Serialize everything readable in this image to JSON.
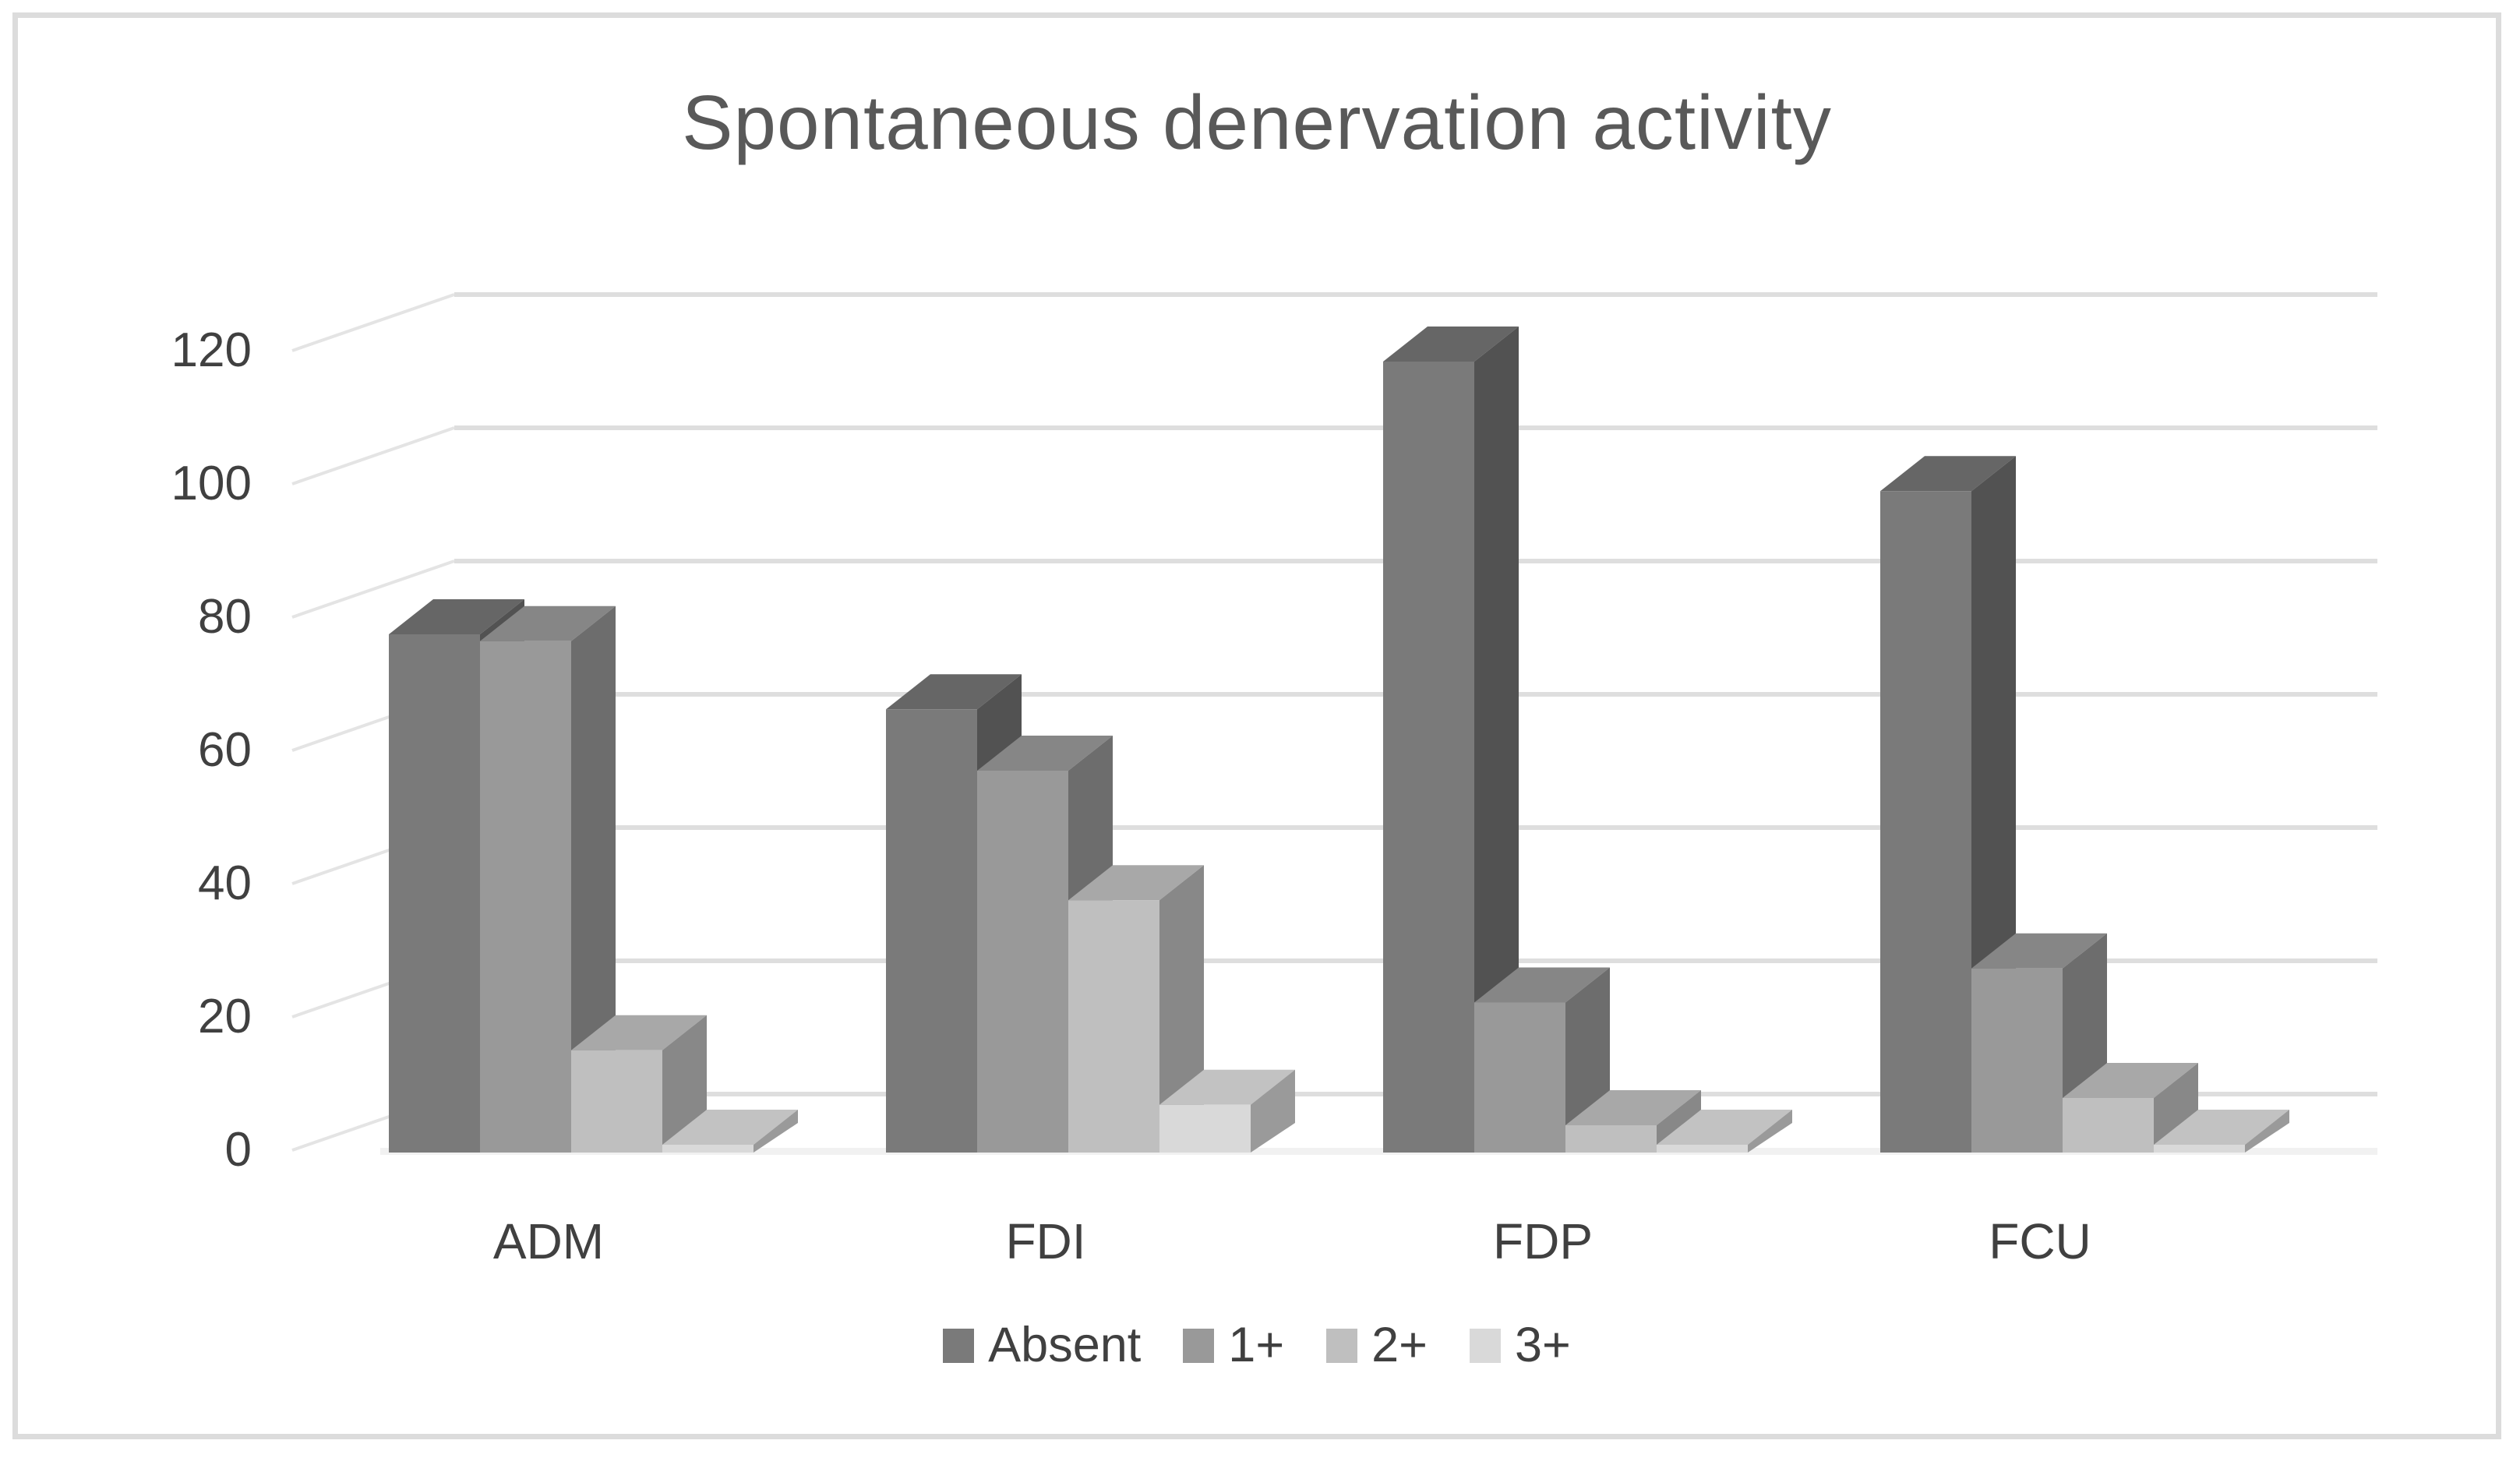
{
  "chart_data": {
    "type": "bar",
    "subtype": "3d_clustered_column",
    "title": "Spontaneous denervation activity",
    "categories": [
      "ADM",
      "FDI",
      "FDP",
      "FCU"
    ],
    "series": [
      {
        "name": "Absent",
        "values": [
          76,
          65,
          116,
          97
        ]
      },
      {
        "name": "1+",
        "values": [
          75,
          56,
          22,
          27
        ]
      },
      {
        "name": "2+",
        "values": [
          15,
          37,
          4,
          8
        ]
      },
      {
        "name": "3+",
        "values": [
          1,
          7,
          1,
          1
        ]
      }
    ],
    "yticks": [
      0,
      20,
      40,
      60,
      80,
      100,
      120
    ],
    "ylim": [
      0,
      120
    ],
    "ylabel": "",
    "xlabel": "",
    "grid": true,
    "legend_position": "bottom"
  },
  "colors": {
    "series_front": [
      "#7a7a7a",
      "#999999",
      "#bfbfbf",
      "#d9d9d9"
    ],
    "series_top": [
      "#666666",
      "#868686",
      "#a8a8a8",
      "#c2c2c2"
    ],
    "series_side": [
      "#525252",
      "#6d6d6d",
      "#888888",
      "#9a9a9a"
    ],
    "gridline": "#dedede",
    "grid_diagonal": "#e4e4e4",
    "floor": "#f1f1f1",
    "title_text": "#595959",
    "axis_text": "#404040",
    "frame_border": "#dcdcdc",
    "background": "#ffffff"
  }
}
